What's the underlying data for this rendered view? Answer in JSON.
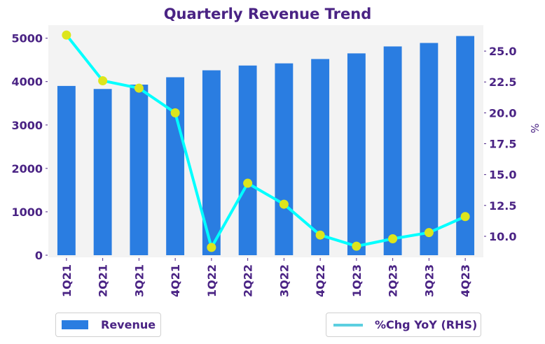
{
  "chart_data": {
    "type": "bar",
    "title": "Quarterly Revenue Trend",
    "categories": [
      "1Q21",
      "2Q21",
      "3Q21",
      "4Q21",
      "1Q22",
      "2Q22",
      "3Q22",
      "4Q22",
      "1Q23",
      "2Q23",
      "3Q23",
      "4Q23"
    ],
    "series": [
      {
        "name": "Revenue",
        "type": "bar",
        "axis": "left",
        "color": "#2a7de1",
        "values": [
          3900,
          3830,
          3930,
          4100,
          4260,
          4370,
          4420,
          4520,
          4650,
          4810,
          4890,
          5050
        ]
      },
      {
        "name": "%Chg YoY (RHS)",
        "type": "line",
        "axis": "right",
        "color": "#00ffff",
        "legend_color": "#5ccfe0",
        "marker_color": "#dde51c",
        "values": [
          26.3,
          22.6,
          22.0,
          20.0,
          9.1,
          14.3,
          12.6,
          10.1,
          9.2,
          9.8,
          10.3,
          11.6
        ]
      }
    ],
    "xlabel": "",
    "ylabel": "",
    "y2label": "%",
    "ylim": [
      0,
      5300
    ],
    "y2lim": [
      8.3,
      27.1
    ],
    "yticks": [
      0,
      1000,
      2000,
      3000,
      4000,
      5000
    ],
    "y2ticks": [
      "10.0",
      "12.5",
      "15.0",
      "17.5",
      "20.0",
      "22.5",
      "25.0"
    ],
    "grid": false,
    "plot_background": "#f3f3f3",
    "text_color": "#4a2384",
    "legend": [
      {
        "label": "Revenue",
        "placement": "bottom-left"
      },
      {
        "label": "%Chg YoY (RHS)",
        "placement": "bottom-right"
      }
    ]
  }
}
